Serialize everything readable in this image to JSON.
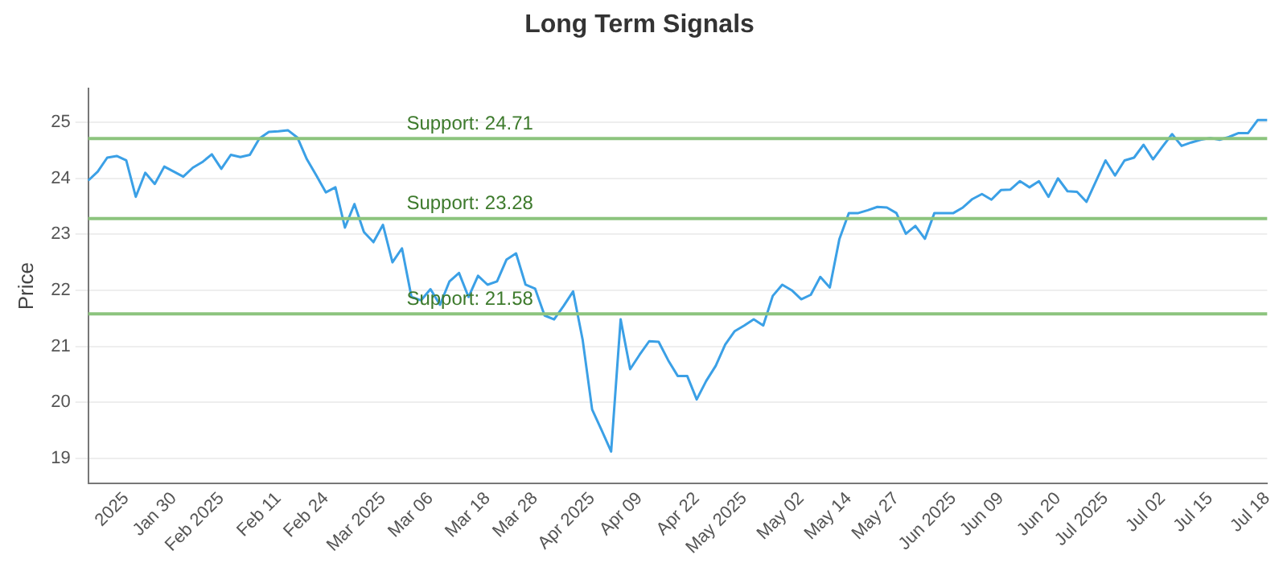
{
  "chart_data": {
    "type": "line",
    "title": "Long Term Signals",
    "ylabel": "Price",
    "categories": [
      null,
      null,
      null,
      null,
      "2025",
      null,
      null,
      null,
      null,
      "Jan 30",
      null,
      null,
      null,
      null,
      "Feb 2025",
      null,
      null,
      null,
      null,
      null,
      "Feb 11",
      null,
      null,
      null,
      null,
      "Feb 24",
      null,
      null,
      null,
      null,
      null,
      "Mar 2025",
      null,
      null,
      null,
      null,
      "Mar 06",
      null,
      null,
      null,
      null,
      null,
      "Mar 18",
      null,
      null,
      null,
      null,
      "Mar 28",
      null,
      null,
      null,
      null,
      null,
      "Apr 2025",
      null,
      null,
      null,
      null,
      "Apr 09",
      null,
      null,
      null,
      null,
      null,
      "Apr 22",
      null,
      null,
      null,
      null,
      "May 2025",
      null,
      null,
      null,
      null,
      null,
      "May 02",
      null,
      null,
      null,
      null,
      "May 14",
      null,
      null,
      null,
      null,
      "May 27",
      null,
      null,
      null,
      null,
      null,
      "Jun 2025",
      null,
      null,
      null,
      null,
      "Jun 09",
      null,
      null,
      null,
      null,
      null,
      "Jun 20",
      null,
      null,
      null,
      null,
      "Jul 2025",
      null,
      null,
      null,
      null,
      null,
      "Jul 02",
      null,
      null,
      null,
      null,
      "Jul 15",
      null,
      null,
      null,
      null,
      null,
      "Jul 18"
    ],
    "series": [
      {
        "color": "#3ba0e6",
        "values": [
          23.96,
          24.12,
          24.37,
          24.4,
          24.32,
          23.67,
          24.1,
          23.9,
          24.21,
          24.12,
          24.03,
          24.19,
          24.29,
          24.43,
          24.17,
          24.42,
          24.38,
          24.42,
          24.71,
          24.83,
          24.84,
          24.86,
          24.73,
          24.34,
          24.05,
          23.75,
          23.84,
          23.12,
          23.54,
          23.04,
          22.86,
          23.17,
          22.5,
          22.75,
          21.88,
          21.82,
          22.02,
          21.74,
          22.16,
          22.31,
          21.88,
          22.26,
          22.1,
          22.16,
          22.55,
          22.66,
          22.1,
          22.03,
          21.55,
          21.48,
          21.72,
          21.98,
          21.12,
          19.87,
          19.5,
          19.12,
          21.48,
          20.59,
          20.85,
          21.09,
          21.08,
          20.75,
          20.47,
          20.47,
          20.05,
          20.38,
          20.65,
          21.03,
          21.27,
          21.37,
          21.48,
          21.37,
          21.9,
          22.1,
          22.0,
          21.84,
          21.92,
          22.24,
          22.05,
          22.91,
          23.38,
          23.38,
          23.43,
          23.49,
          23.48,
          23.38,
          23.01,
          23.15,
          22.92,
          23.38,
          23.38,
          23.38,
          23.48,
          23.63,
          23.72,
          23.62,
          23.79,
          23.8,
          23.95,
          23.84,
          23.95,
          23.67,
          24.0,
          23.77,
          23.76,
          23.58,
          23.95,
          24.32,
          24.05,
          24.32,
          24.37,
          24.6,
          24.34,
          24.57,
          24.79,
          24.58,
          24.64,
          24.69,
          24.72,
          24.69,
          24.74,
          24.81,
          24.81,
          25.04,
          25.04
        ]
      }
    ],
    "ylim": [
      18.55,
      25.6
    ],
    "yticks": [
      19,
      20,
      21,
      22,
      23,
      24,
      25
    ],
    "grid": "y",
    "marker": "none",
    "line_style": "solid",
    "ref_lines": [
      {
        "axis": "y",
        "value": 24.71,
        "label": "Support: 24.71",
        "color": "#8cc47e"
      },
      {
        "axis": "y",
        "value": 23.28,
        "label": "Support: 23.28",
        "color": "#8cc47e"
      },
      {
        "axis": "y",
        "value": 21.58,
        "label": "Support: 21.58",
        "color": "#8cc47e"
      }
    ]
  }
}
